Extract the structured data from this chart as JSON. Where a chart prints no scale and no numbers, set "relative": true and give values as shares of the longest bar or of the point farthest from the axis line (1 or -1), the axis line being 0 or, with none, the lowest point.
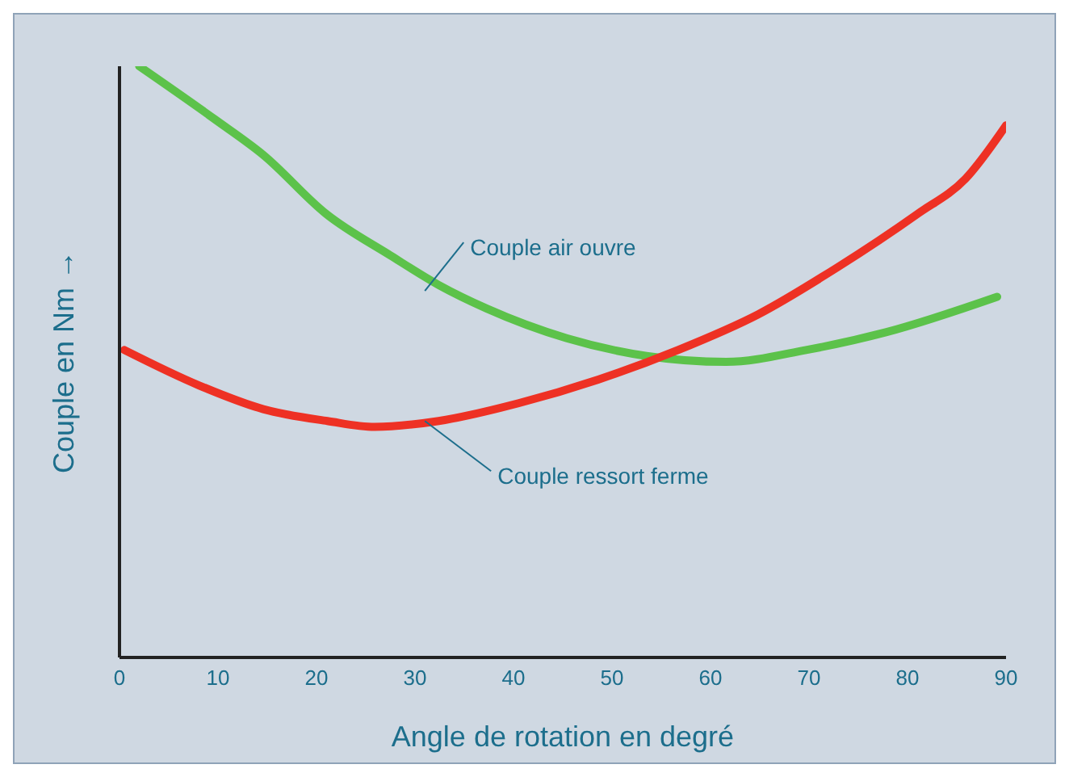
{
  "chart_data": {
    "type": "line",
    "relative": true,
    "xlabel": "Angle de rotation en degré",
    "ylabel": "Couple en Nm →",
    "xlim": [
      0,
      90
    ],
    "xticks": [
      0,
      10,
      20,
      30,
      40,
      50,
      60,
      70,
      80,
      90
    ],
    "marker": "none",
    "series": [
      {
        "color": "#5cc24a",
        "x": [
          2,
          9.7,
          14.6,
          21,
          27.5,
          32.4,
          37.3,
          45.4,
          53.5,
          61.6,
          69.7,
          77.8,
          89.1
        ],
        "values": [
          1,
          0.91,
          0.85,
          0.75,
          0.68,
          0.63,
          0.59,
          0.54,
          0.51,
          0.5,
          0.52,
          0.55,
          0.61
        ]
      },
      {
        "color": "#ee3124",
        "x": [
          0.5,
          8.1,
          14.6,
          21.1,
          25.9,
          32.4,
          40.5,
          48.6,
          56.7,
          64.8,
          72.9,
          81,
          85.9,
          90
        ],
        "values": [
          0.52,
          0.46,
          0.42,
          0.4,
          0.39,
          0.4,
          0.43,
          0.47,
          0.52,
          0.58,
          0.66,
          0.75,
          0.81,
          0.9
        ]
      }
    ],
    "annotations": [
      {
        "text": "Couple air ouvre",
        "x": 31,
        "y": 0.62
      },
      {
        "text": "Couple ressort ferme",
        "x": 31,
        "y": 0.4
      }
    ]
  }
}
